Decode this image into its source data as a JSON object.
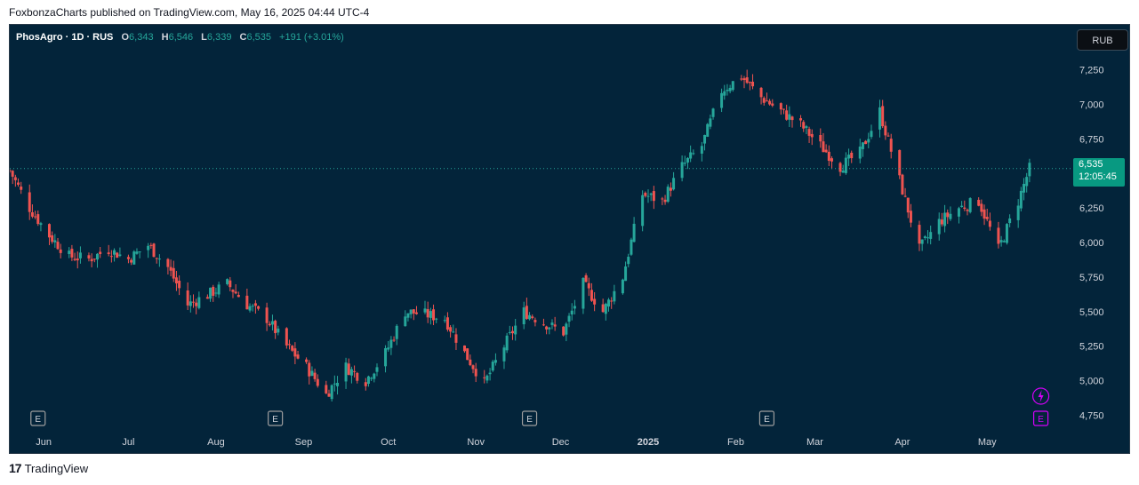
{
  "header": {
    "attribution": "FoxbonzaCharts published on TradingView.com, May 16, 2025 04:44 UTC-4"
  },
  "legend": {
    "symbol": "PhosAgro · 1D · RUS",
    "open_label": "O",
    "open": "6,343",
    "high_label": "H",
    "high": "6,546",
    "low_label": "L",
    "low": "6,339",
    "close_label": "C",
    "close": "6,535",
    "change": "+191 (+3.01%)"
  },
  "currency_button": "RUB",
  "last_price": {
    "price": "6,535",
    "countdown": "12:05:45"
  },
  "footer": {
    "logo": "17",
    "brand": "TradingView"
  },
  "colors": {
    "background": "#03243a",
    "up": "#26a69a",
    "down": "#ef5350",
    "axis_text": "#d1d4dc"
  },
  "icons": {
    "earnings": "E",
    "flash": "lightning-icon"
  },
  "chart_data": {
    "type": "candlestick",
    "interval": "1D",
    "currency": "RUB",
    "ylim": [
      4650,
      7350
    ],
    "y_ticks": [
      4750,
      5000,
      5250,
      5500,
      5750,
      6000,
      6250,
      6500,
      6750,
      7000,
      7250
    ],
    "y_tick_labels": [
      "4,750",
      "5,000",
      "5,250",
      "5,500",
      "5,750",
      "6,000",
      "6,250",
      "6,500",
      "6,750",
      "7,000",
      "7,250"
    ],
    "x_range": [
      "2024-05-20",
      "2025-05-28"
    ],
    "x_ticks": [
      {
        "date": "2024-06-01",
        "label": "Jun"
      },
      {
        "date": "2024-07-01",
        "label": "Jul"
      },
      {
        "date": "2024-08-01",
        "label": "Aug"
      },
      {
        "date": "2024-09-01",
        "label": "Sep"
      },
      {
        "date": "2024-10-01",
        "label": "Oct"
      },
      {
        "date": "2024-11-01",
        "label": "Nov"
      },
      {
        "date": "2024-12-01",
        "label": "Dec"
      },
      {
        "date": "2025-01-01",
        "label": "2025"
      },
      {
        "date": "2025-02-01",
        "label": "Feb"
      },
      {
        "date": "2025-03-01",
        "label": "Mar"
      },
      {
        "date": "2025-04-01",
        "label": "Apr"
      },
      {
        "date": "2025-05-01",
        "label": "May"
      }
    ],
    "last_close": 6535,
    "close_series": [
      [
        "2024-05-20",
        6520
      ],
      [
        "2024-05-27",
        6250
      ],
      [
        "2024-06-03",
        6050
      ],
      [
        "2024-06-10",
        5900
      ],
      [
        "2024-06-17",
        5880
      ],
      [
        "2024-06-24",
        5950
      ],
      [
        "2024-07-01",
        5880
      ],
      [
        "2024-07-08",
        5980
      ],
      [
        "2024-07-15",
        5820
      ],
      [
        "2024-07-22",
        5550
      ],
      [
        "2024-07-29",
        5620
      ],
      [
        "2024-08-05",
        5700
      ],
      [
        "2024-08-12",
        5550
      ],
      [
        "2024-08-19",
        5450
      ],
      [
        "2024-08-26",
        5250
      ],
      [
        "2024-09-02",
        5100
      ],
      [
        "2024-09-09",
        4900
      ],
      [
        "2024-09-16",
        5100
      ],
      [
        "2024-09-23",
        5000
      ],
      [
        "2024-09-30",
        5200
      ],
      [
        "2024-10-07",
        5500
      ],
      [
        "2024-10-14",
        5480
      ],
      [
        "2024-10-21",
        5450
      ],
      [
        "2024-10-28",
        5200
      ],
      [
        "2024-11-04",
        4980
      ],
      [
        "2024-11-11",
        5250
      ],
      [
        "2024-11-18",
        5500
      ],
      [
        "2024-11-25",
        5420
      ],
      [
        "2024-12-02",
        5350
      ],
      [
        "2024-12-09",
        5700
      ],
      [
        "2024-12-16",
        5500
      ],
      [
        "2024-12-23",
        5750
      ],
      [
        "2024-12-30",
        6350
      ],
      [
        "2025-01-06",
        6300
      ],
      [
        "2025-01-13",
        6550
      ],
      [
        "2025-01-20",
        6700
      ],
      [
        "2025-01-27",
        7100
      ],
      [
        "2025-02-03",
        7200
      ],
      [
        "2025-02-10",
        7050
      ],
      [
        "2025-02-17",
        6950
      ],
      [
        "2025-02-24",
        6850
      ],
      [
        "2025-03-03",
        6700
      ],
      [
        "2025-03-10",
        6550
      ],
      [
        "2025-03-17",
        6650
      ],
      [
        "2025-03-24",
        6950
      ],
      [
        "2025-03-31",
        6450
      ],
      [
        "2025-04-07",
        5950
      ],
      [
        "2025-04-14",
        6150
      ],
      [
        "2025-04-21",
        6250
      ],
      [
        "2025-04-28",
        6300
      ],
      [
        "2025-05-05",
        5950
      ],
      [
        "2025-05-12",
        6300
      ],
      [
        "2025-05-16",
        6535
      ]
    ],
    "events": [
      {
        "date": "2024-05-30",
        "type": "earnings",
        "label": "E"
      },
      {
        "date": "2024-08-22",
        "type": "earnings",
        "label": "E"
      },
      {
        "date": "2024-11-20",
        "type": "earnings",
        "label": "E"
      },
      {
        "date": "2025-02-12",
        "type": "earnings",
        "label": "E"
      },
      {
        "date": "2025-05-20",
        "type": "earnings",
        "label": "E"
      }
    ]
  }
}
